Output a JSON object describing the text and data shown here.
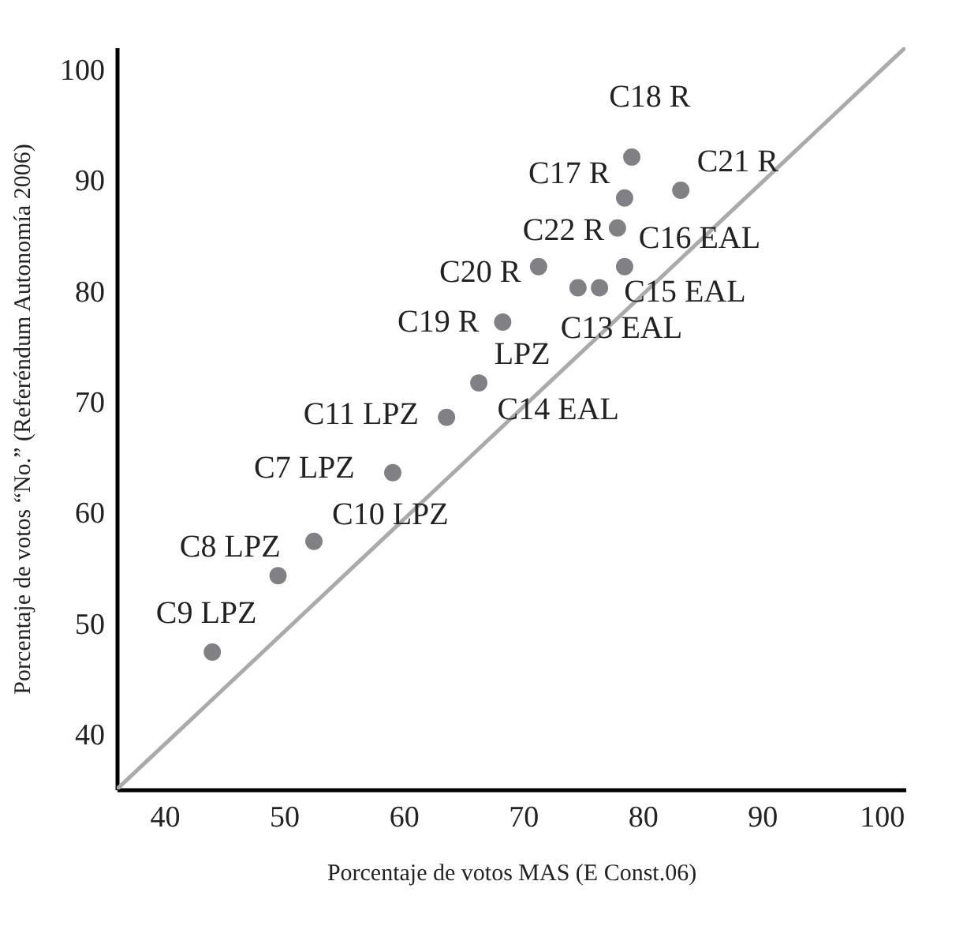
{
  "chart_data": {
    "type": "scatter",
    "xlabel": "Porcentaje de votos MAS (E Const.06)",
    "ylabel": "Porcentaje de votos “No.” (Referéndum Autonomía 2006)",
    "xlim": [
      36,
      102
    ],
    "ylim": [
      35,
      102
    ],
    "xticks": [
      40,
      50,
      60,
      70,
      80,
      90,
      100
    ],
    "yticks": [
      40,
      50,
      60,
      70,
      80,
      90,
      100
    ],
    "grid": false,
    "series": [
      {
        "type": "line",
        "color": "#aaaaaa",
        "x": [
          36,
          102
        ],
        "values": [
          35,
          102
        ]
      },
      {
        "color": "#808085",
        "marker": "circle",
        "x": [
          44.0,
          49.5,
          52.5,
          59.1,
          63.6,
          66.3,
          68.3,
          71.3,
          74.6,
          76.4,
          78.5,
          77.9,
          78.5,
          79.1,
          83.2
        ],
        "values": [
          47.4,
          54.3,
          57.4,
          63.6,
          68.6,
          71.7,
          77.2,
          82.2,
          80.3,
          80.3,
          82.2,
          85.7,
          88.4,
          92.1,
          89.1
        ]
      }
    ],
    "annotations": [
      {
        "text": "C18 R",
        "x": 79.1,
        "y": 92.1
      },
      {
        "text": "C17 R",
        "x": 78.5,
        "y": 88.4
      },
      {
        "text": "C21 R",
        "x": 83.2,
        "y": 89.1
      },
      {
        "text": "C22 R",
        "x": 77.9,
        "y": 85.7
      },
      {
        "text": "C16 EAL",
        "x": 78.5,
        "y": 82.2
      },
      {
        "text": "C20 R",
        "x": 71.3,
        "y": 82.2
      },
      {
        "text": "C15 EAL",
        "x": 76.4,
        "y": 80.3
      },
      {
        "text": "C19 R",
        "x": 68.3,
        "y": 77.2
      },
      {
        "text": "C13 EAL",
        "x": 74.6,
        "y": 80.3
      },
      {
        "text": "LPZ",
        "x": 66.3,
        "y": 71.7
      },
      {
        "text": "C11 LPZ",
        "x": 63.6,
        "y": 68.6
      },
      {
        "text": "C14 EAL",
        "x": 66.3,
        "y": 71.7
      },
      {
        "text": "C7 LPZ",
        "x": 59.1,
        "y": 63.6
      },
      {
        "text": "C10 LPZ",
        "x": 52.5,
        "y": 57.4
      },
      {
        "text": "C8 LPZ",
        "x": 49.5,
        "y": 54.3
      },
      {
        "text": "C9 LPZ",
        "x": 44.0,
        "y": 47.4
      }
    ]
  }
}
